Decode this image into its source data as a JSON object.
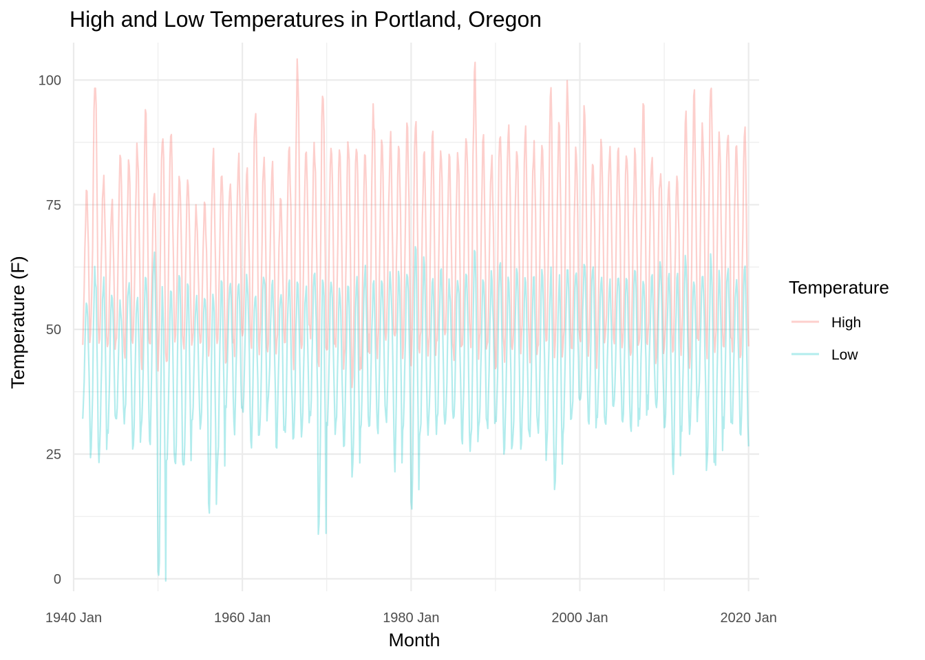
{
  "chart_data": {
    "type": "line",
    "title": "High and Low Temperatures in Portland, Oregon",
    "xlabel": "Month",
    "ylabel": "Temperature (F)",
    "x_range": [
      "1941-01",
      "2020-01"
    ],
    "xlim": [
      "1940-01",
      "2021-04"
    ],
    "ylim": [
      -2.5,
      107.5
    ],
    "y_ticks": [
      0,
      25,
      50,
      75,
      100
    ],
    "x_ticks": [
      {
        "date": "1940-01",
        "label": "1940 Jan"
      },
      {
        "date": "1960-01",
        "label": "1960 Jan"
      },
      {
        "date": "1980-01",
        "label": "1980 Jan"
      },
      {
        "date": "2000-01",
        "label": "2000 Jan"
      },
      {
        "date": "2020-01",
        "label": "2020 Jan"
      }
    ],
    "x_minor_ticks": [
      "1950-01",
      "1970-01",
      "1990-01",
      "2010-01"
    ],
    "grid": true,
    "legend": {
      "title": "Temperature",
      "position": "right"
    },
    "series": [
      {
        "name": "High",
        "color": "#F8766D",
        "opacity": 0.35,
        "notes": "monthly max temperatures; peaks ~80-102F in summer, troughs ~44-52F in winter",
        "yearly_max": [
          77,
          100,
          80,
          75,
          84,
          84,
          86,
          92,
          78,
          89,
          90,
          80,
          80,
          74,
          75,
          85,
          82,
          80,
          84,
          83,
          95,
          83,
          84,
          76,
          87,
          102,
          86,
          86,
          99,
          88,
          86,
          88,
          88,
          84,
          94,
          88,
          88,
          86,
          90,
          92,
          85,
          88,
          86,
          84,
          86,
          89,
          102,
          88,
          85,
          89,
          91,
          86,
          90,
          87,
          87,
          97,
          90,
          98,
          85,
          93,
          84,
          87,
          86,
          87,
          85,
          85,
          94,
          84,
          82,
          79,
          80,
          92,
          97,
          90,
          101,
          88,
          90,
          87,
          89,
          87
        ],
        "yearly_min": [
          46,
          50,
          48,
          46,
          48,
          45,
          48,
          44,
          46,
          43,
          45,
          48,
          47,
          46,
          46,
          45,
          46,
          44,
          46,
          48,
          44,
          46,
          47,
          46,
          48,
          44,
          46,
          48,
          44,
          44,
          46,
          42,
          40,
          43,
          46,
          45,
          48,
          46,
          45,
          44,
          46,
          44,
          46,
          47,
          45,
          46,
          48,
          45,
          46,
          44,
          45,
          47,
          46,
          44,
          48,
          46,
          44,
          45,
          46,
          47,
          46,
          44,
          48,
          46,
          45,
          46,
          46,
          47,
          44,
          46,
          45,
          46,
          44,
          48,
          46,
          45,
          46,
          47,
          46,
          45
        ]
      },
      {
        "name": "Low",
        "color": "#00BFC4",
        "opacity": 0.3,
        "notes": "monthly min temperatures; peaks ~52-65F in summer, troughs ~20-40F in winter",
        "yearly_max": [
          56,
          62,
          59,
          58,
          55,
          60,
          58,
          61,
          65,
          57,
          57,
          60,
          58,
          56,
          57,
          58,
          59,
          60,
          60,
          60,
          58,
          62,
          59,
          58,
          60,
          60,
          58,
          61,
          62,
          60,
          58,
          59,
          60,
          62,
          59,
          60,
          61,
          61,
          62,
          66,
          63,
          60,
          62,
          59,
          60,
          62,
          66,
          60,
          61,
          62,
          60,
          62,
          59,
          60,
          61,
          61,
          60,
          62,
          61,
          63,
          63,
          60,
          60,
          61,
          60,
          62,
          61,
          60,
          63,
          60,
          61,
          64,
          60,
          60,
          64,
          62,
          63,
          60,
          62,
          60
        ],
        "yearly_min": [
          32,
          24,
          24,
          30,
          32,
          32,
          25,
          30,
          27,
          -2,
          25,
          22,
          22,
          32,
          30,
          13,
          22,
          35,
          30,
          34,
          26,
          29,
          35,
          27,
          30,
          28,
          29,
          33,
          9,
          30,
          30,
          27,
          22,
          30,
          30,
          30,
          31,
          23,
          31,
          13,
          27,
          30,
          30,
          30,
          32,
          28,
          26,
          30,
          31,
          30,
          26,
          28,
          27,
          28,
          30,
          25,
          17,
          30,
          33,
          34,
          30,
          32,
          32,
          34,
          30,
          30,
          32,
          35,
          33,
          29,
          22,
          30,
          30,
          36,
          21,
          24,
          30,
          32,
          28,
          26
        ]
      }
    ]
  }
}
